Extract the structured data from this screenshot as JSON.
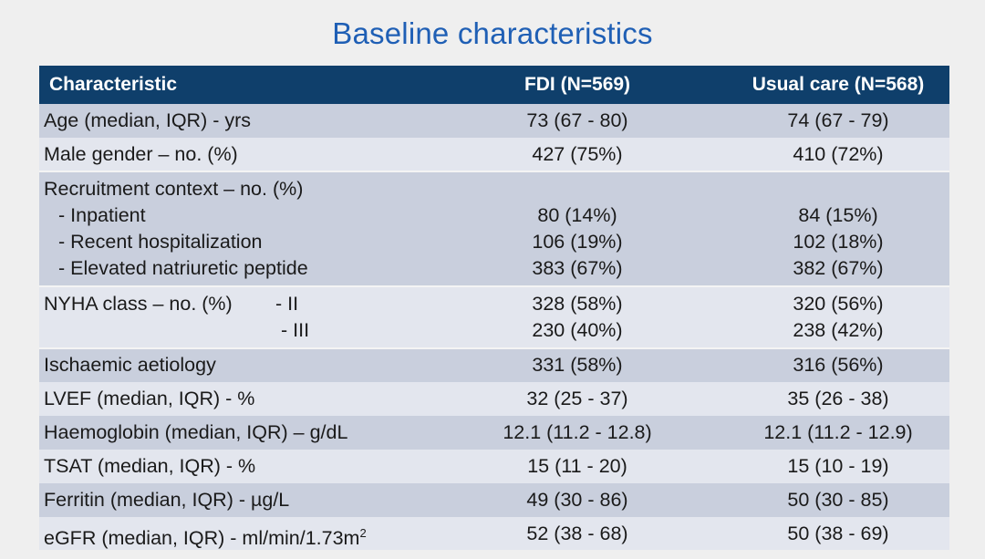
{
  "title": "Baseline characteristics",
  "table": {
    "headers": {
      "characteristic": "Characteristic",
      "fdi": "FDI (N=569)",
      "usual": "Usual care (N=568)"
    },
    "rows": {
      "age": {
        "label": "Age (median, IQR) - yrs",
        "fdi": "73 (67 - 80)",
        "usual": "74 (67 - 79)"
      },
      "male": {
        "label": "Male gender – no. (%)",
        "fdi": "427 (75%)",
        "usual": "410 (72%)"
      },
      "recruitment": {
        "label": "Recruitment context – no. (%)",
        "inpatient": {
          "label": "- Inpatient",
          "fdi": "80 (14%)",
          "usual": "84 (15%)"
        },
        "recent": {
          "label": "- Recent hospitalization",
          "fdi": "106 (19%)",
          "usual": "102 (18%)"
        },
        "elevated": {
          "label": "- Elevated natriuretic peptide",
          "fdi": "383 (67%)",
          "usual": "382 (67%)"
        }
      },
      "nyha": {
        "label": "NYHA class – no. (%)",
        "ii": {
          "label": "- II",
          "fdi": "328 (58%)",
          "usual": "320 (56%)"
        },
        "iii": {
          "label": "- III",
          "fdi": "230 (40%)",
          "usual": "238 (42%)"
        }
      },
      "ischaemic": {
        "label": "Ischaemic aetiology",
        "fdi": "331 (58%)",
        "usual": "316 (56%)"
      },
      "lvef": {
        "label": "LVEF (median, IQR) - %",
        "fdi": "32 (25 - 37)",
        "usual": "35 (26 - 38)"
      },
      "haemoglobin": {
        "label": "Haemoglobin (median, IQR) – g/dL",
        "fdi": "12.1 (11.2 - 12.8)",
        "usual": "12.1 (11.2 - 12.9)"
      },
      "tsat": {
        "label": "TSAT (median, IQR) - %",
        "fdi": "15 (11 - 20)",
        "usual": "15 (10 - 19)"
      },
      "ferritin": {
        "label": "Ferritin (median, IQR) - µg/L",
        "fdi": "49 (30 - 86)",
        "usual": "50 (30 - 85)"
      },
      "egfr": {
        "label": "eGFR (median, IQR) - ml/min/1.73m",
        "label_sup": "2",
        "fdi": "52 (38 - 68)",
        "usual": "50 (38 - 69)"
      }
    }
  }
}
